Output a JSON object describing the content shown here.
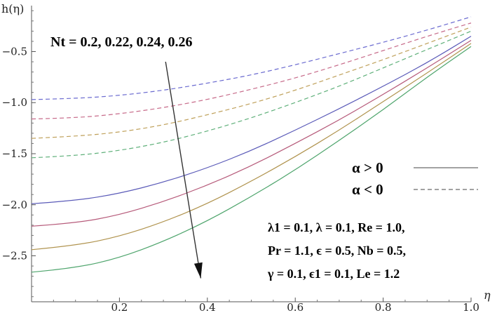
{
  "chart_data": {
    "type": "line",
    "xlabel": "η",
    "ylabel": "h(η)",
    "xlim": [
      0.0,
      1.0
    ],
    "ylim": [
      -2.95,
      -0.05
    ],
    "x_ticks": [
      "0.2",
      "0.4",
      "0.6",
      "0.8",
      "1.0"
    ],
    "y_ticks": [
      "-0.5",
      "-1.0",
      "-1.5",
      "-2.0",
      "-2.5"
    ],
    "x": [
      0.0,
      0.1,
      0.2,
      0.3,
      0.4,
      0.5,
      0.6,
      0.7,
      0.8,
      0.9,
      1.0
    ],
    "series": [
      {
        "group": "alpha<0",
        "nt": "0.2",
        "color": "#6b6bd0",
        "dash": true,
        "values": [
          -0.97,
          -0.96,
          -0.93,
          -0.88,
          -0.81,
          -0.73,
          -0.63,
          -0.52,
          -0.41,
          -0.29,
          -0.16
        ]
      },
      {
        "group": "alpha<0",
        "nt": "0.22",
        "color": "#c76b8a",
        "dash": true,
        "values": [
          -1.16,
          -1.15,
          -1.11,
          -1.05,
          -0.97,
          -0.87,
          -0.76,
          -0.63,
          -0.49,
          -0.35,
          -0.22
        ]
      },
      {
        "group": "alpha<0",
        "nt": "0.24",
        "color": "#bfa05a",
        "dash": true,
        "values": [
          -1.35,
          -1.33,
          -1.29,
          -1.22,
          -1.12,
          -1.01,
          -0.88,
          -0.73,
          -0.58,
          -0.42,
          -0.26
        ]
      },
      {
        "group": "alpha<0",
        "nt": "0.26",
        "color": "#5fb07a",
        "dash": true,
        "values": [
          -1.54,
          -1.52,
          -1.47,
          -1.39,
          -1.28,
          -1.15,
          -1.0,
          -0.84,
          -0.66,
          -0.48,
          -0.3
        ]
      },
      {
        "group": "alpha>0",
        "nt": "0.2",
        "color": "#5a5ab8",
        "dash": false,
        "values": [
          -1.99,
          -1.96,
          -1.89,
          -1.78,
          -1.64,
          -1.47,
          -1.27,
          -1.06,
          -0.84,
          -0.61,
          -0.35
        ]
      },
      {
        "group": "alpha>0",
        "nt": "0.22",
        "color": "#b65a7a",
        "dash": false,
        "values": [
          -2.21,
          -2.18,
          -2.1,
          -1.97,
          -1.81,
          -1.62,
          -1.4,
          -1.17,
          -0.92,
          -0.66,
          -0.39
        ]
      },
      {
        "group": "alpha>0",
        "nt": "0.24",
        "color": "#b0934e",
        "dash": false,
        "values": [
          -2.44,
          -2.4,
          -2.31,
          -2.17,
          -1.99,
          -1.77,
          -1.53,
          -1.27,
          -0.99,
          -0.71,
          -0.42
        ]
      },
      {
        "group": "alpha>0",
        "nt": "0.26",
        "color": "#4fa56d",
        "dash": false,
        "values": [
          -2.66,
          -2.62,
          -2.52,
          -2.36,
          -2.16,
          -1.92,
          -1.66,
          -1.37,
          -1.07,
          -0.75,
          -0.45
        ]
      }
    ],
    "annotations": {
      "nt_label": "Nt = 0.2, 0.22, 0.24, 0.26",
      "params_line1": "λ1 = 0.1, λ = 0.1, Re = 1.0,",
      "params_line2": "Pr = 1.1, ϵ = 0.5, Nb = 0.5,",
      "params_line3": "γ = 0.1, ϵ1 = 0.1, Le = 1.2",
      "arrow_from": [
        0.305,
        -0.6
      ],
      "arrow_to": [
        0.385,
        -2.72
      ]
    },
    "legend": {
      "placement": "right",
      "entries": [
        {
          "label": "α > 0",
          "style": "solid"
        },
        {
          "label": "α < 0",
          "style": "dashed"
        }
      ]
    },
    "grid": false
  }
}
